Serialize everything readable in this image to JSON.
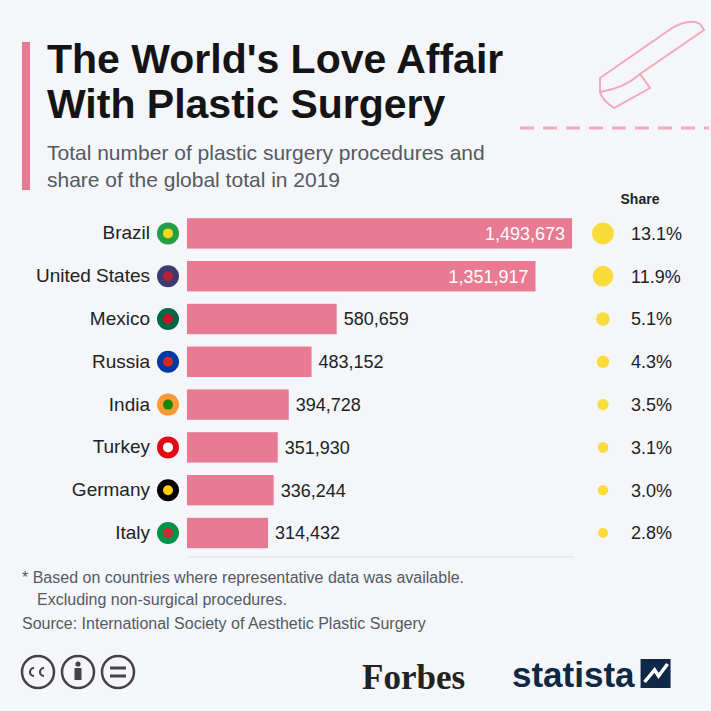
{
  "chart_data": {
    "type": "bar",
    "orientation": "horizontal",
    "title": "The World's Love Affair With Plastic Surgery",
    "subtitle": "Total number of plastic surgery procedures and share of the global total in 2019",
    "categories": [
      "Brazil",
      "United States",
      "Mexico",
      "Russia",
      "India",
      "Turkey",
      "Germany",
      "Italy"
    ],
    "values": [
      1493673,
      1351917,
      580659,
      483152,
      394728,
      351930,
      336244,
      314432
    ],
    "value_labels": [
      "1,493,673",
      "1,351,917",
      "580,659",
      "483,152",
      "394,728",
      "351,930",
      "336,244",
      "314,432"
    ],
    "color": "#e87a93",
    "data_labels": true,
    "xlim": [
      0,
      1500000
    ],
    "share_title": "Share",
    "share": [
      13.1,
      11.9,
      5.1,
      4.3,
      3.5,
      3.1,
      3.0,
      2.8
    ],
    "share_labels": [
      "13.1%",
      "11.9%",
      "5.1%",
      "4.3%",
      "3.5%",
      "3.1%",
      "3.0%",
      "2.8%"
    ],
    "share_color": "#f9dc3a",
    "notes": [
      "* Based on countries where representative data was available.",
      "Excluding non-surgical procedures."
    ],
    "source": "Source: International Society of Aesthetic Plastic Surgery",
    "credits": [
      "Forbes",
      "statista"
    ]
  }
}
